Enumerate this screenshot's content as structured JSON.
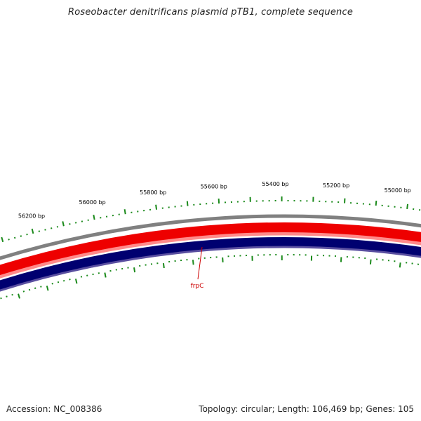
{
  "title": "Roseobacter denitrificans plasmid pTB1, complete sequence",
  "footer": {
    "accession": "Accession: NC_008386",
    "summary": "Topology: circular; Length: 106,469 bp; Genes: 105"
  },
  "ruler_labels": [
    "56200 bp",
    "56000 bp",
    "55800 bp",
    "55600 bp",
    "55400 bp",
    "55200 bp",
    "55000 bp"
  ],
  "genes": [
    {
      "name": "frpC"
    }
  ],
  "colors": {
    "backbone": "#808080",
    "forward_strand": "#ee0000",
    "forward_strand_edge": "#ff8a8a",
    "reverse_strand": "#000070",
    "reverse_strand_edge": "#5a4fa0",
    "tick": "#1b8a1b",
    "gene_label": "#cc0000"
  }
}
